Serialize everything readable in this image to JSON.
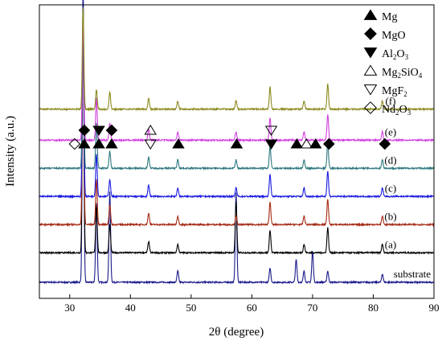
{
  "chart_data": {
    "type": "line",
    "title": "",
    "xlabel": "2θ  (degree)",
    "ylabel": "Intensity (a.u.)",
    "xlim": [
      25,
      90
    ],
    "xticks": [
      30,
      40,
      50,
      60,
      70,
      80,
      90
    ],
    "y_ticks_shown": false,
    "grid": false,
    "legend_position": "top-right",
    "legend": [
      {
        "symbol": "filled-up-triangle",
        "parts": [
          {
            "t": "Mg"
          }
        ]
      },
      {
        "symbol": "filled-diamond",
        "parts": [
          {
            "t": "MgO"
          }
        ]
      },
      {
        "symbol": "filled-down-triangle",
        "parts": [
          {
            "t": "Al"
          },
          {
            "t": "2",
            "sub": true
          },
          {
            "t": "O"
          },
          {
            "t": "3",
            "sub": true
          }
        ]
      },
      {
        "symbol": "open-up-triangle",
        "parts": [
          {
            "t": "Mg"
          },
          {
            "t": "2",
            "sub": true
          },
          {
            "t": "SiO"
          },
          {
            "t": "4",
            "sub": true
          }
        ]
      },
      {
        "symbol": "open-down-triangle",
        "parts": [
          {
            "t": "MgF"
          },
          {
            "t": "2",
            "sub": true
          }
        ]
      },
      {
        "symbol": "open-diamond",
        "parts": [
          {
            "t": "Nd"
          },
          {
            "t": "2",
            "sub": true
          },
          {
            "t": "O"
          },
          {
            "t": "3",
            "sub": true
          }
        ]
      }
    ],
    "series": [
      {
        "name": "substrate",
        "color": "#1a1a8c",
        "offset": 0.4,
        "peaks": [
          [
            32.2,
            10.6
          ],
          [
            34.4,
            2.8
          ],
          [
            36.6,
            3.2
          ],
          [
            47.8,
            0.4
          ],
          [
            57.4,
            3.2
          ],
          [
            63.0,
            0.5
          ],
          [
            67.3,
            0.8
          ],
          [
            68.6,
            0.4
          ],
          [
            70.0,
            1.1
          ],
          [
            72.5,
            0.4
          ],
          [
            81.5,
            0.3
          ]
        ]
      },
      {
        "name": "(a)",
        "color": "#000000",
        "offset": 1.45,
        "peaks": [
          [
            32.2,
            8.4
          ],
          [
            34.4,
            1.7
          ],
          [
            36.6,
            1.0
          ],
          [
            43.0,
            0.4
          ],
          [
            47.8,
            0.3
          ],
          [
            57.4,
            1.8
          ],
          [
            63.0,
            0.8
          ],
          [
            68.6,
            0.3
          ],
          [
            72.5,
            0.9
          ],
          [
            81.5,
            0.3
          ]
        ]
      },
      {
        "name": "(b)",
        "color": "#a52a14",
        "offset": 2.45,
        "peaks": [
          [
            32.2,
            7.4
          ],
          [
            34.4,
            1.6
          ],
          [
            36.6,
            0.7
          ],
          [
            43.0,
            0.4
          ],
          [
            47.8,
            0.3
          ],
          [
            57.4,
            0.3
          ],
          [
            63.0,
            0.8
          ],
          [
            68.6,
            0.3
          ],
          [
            72.5,
            0.9
          ],
          [
            81.5,
            0.3
          ]
        ]
      },
      {
        "name": "(c)",
        "color": "#1a1ae0",
        "offset": 3.45,
        "peaks": [
          [
            32.2,
            6.4
          ],
          [
            34.4,
            1.5
          ],
          [
            36.6,
            0.6
          ],
          [
            43.0,
            0.4
          ],
          [
            47.8,
            0.3
          ],
          [
            57.4,
            0.3
          ],
          [
            63.0,
            0.8
          ],
          [
            68.6,
            0.3
          ],
          [
            72.5,
            0.9
          ],
          [
            81.5,
            0.3
          ]
        ]
      },
      {
        "name": "(d)",
        "color": "#2e7880",
        "offset": 4.45,
        "peaks": [
          [
            32.2,
            5.4
          ],
          [
            34.4,
            1.6
          ],
          [
            36.6,
            0.6
          ],
          [
            43.0,
            0.4
          ],
          [
            47.8,
            0.3
          ],
          [
            57.4,
            0.3
          ],
          [
            63.0,
            0.8
          ],
          [
            68.6,
            0.3
          ],
          [
            72.5,
            0.9
          ],
          [
            81.5,
            0.3
          ]
        ]
      },
      {
        "name": "(e)",
        "color": "#d23ee0",
        "offset": 5.45,
        "peaks": [
          [
            32.2,
            4.2
          ],
          [
            34.4,
            1.5
          ],
          [
            36.6,
            0.6
          ],
          [
            43.0,
            0.4
          ],
          [
            47.8,
            0.3
          ],
          [
            57.4,
            0.3
          ],
          [
            63.0,
            0.8
          ],
          [
            68.6,
            0.3
          ],
          [
            72.5,
            0.9
          ],
          [
            81.5,
            0.3
          ]
        ]
      },
      {
        "name": "(f)",
        "color": "#8a8a1e",
        "offset": 6.55,
        "peaks": [
          [
            32.2,
            3.6
          ],
          [
            34.4,
            0.7
          ],
          [
            36.6,
            0.6
          ],
          [
            43.0,
            0.4
          ],
          [
            47.8,
            0.3
          ],
          [
            57.4,
            0.3
          ],
          [
            63.0,
            0.8
          ],
          [
            68.6,
            0.3
          ],
          [
            72.5,
            0.9
          ],
          [
            81.5,
            0.3
          ]
        ]
      }
    ],
    "peak_markers": [
      {
        "x": 30.8,
        "symbols": [
          "open-diamond"
        ]
      },
      {
        "x": 32.4,
        "symbols": [
          "filled-up-triangle",
          "filled-diamond"
        ]
      },
      {
        "x": 34.8,
        "symbols": [
          "filled-up-triangle",
          "filled-down-triangle"
        ]
      },
      {
        "x": 36.9,
        "symbols": [
          "filled-up-triangle",
          "filled-diamond"
        ]
      },
      {
        "x": 43.3,
        "symbols": [
          "open-down-triangle",
          "open-up-triangle"
        ]
      },
      {
        "x": 47.9,
        "symbols": [
          "filled-up-triangle"
        ]
      },
      {
        "x": 57.5,
        "symbols": [
          "filled-up-triangle"
        ]
      },
      {
        "x": 63.2,
        "symbols": [
          "filled-down-triangle",
          "open-down-triangle"
        ]
      },
      {
        "x": 67.4,
        "symbols": [
          "filled-up-triangle"
        ]
      },
      {
        "x": 69.0,
        "symbols": [
          "open-up-triangle"
        ]
      },
      {
        "x": 70.5,
        "symbols": [
          "filled-up-triangle"
        ]
      },
      {
        "x": 72.7,
        "symbols": [
          "filled-diamond"
        ]
      },
      {
        "x": 81.9,
        "symbols": [
          "filled-diamond"
        ]
      }
    ]
  }
}
